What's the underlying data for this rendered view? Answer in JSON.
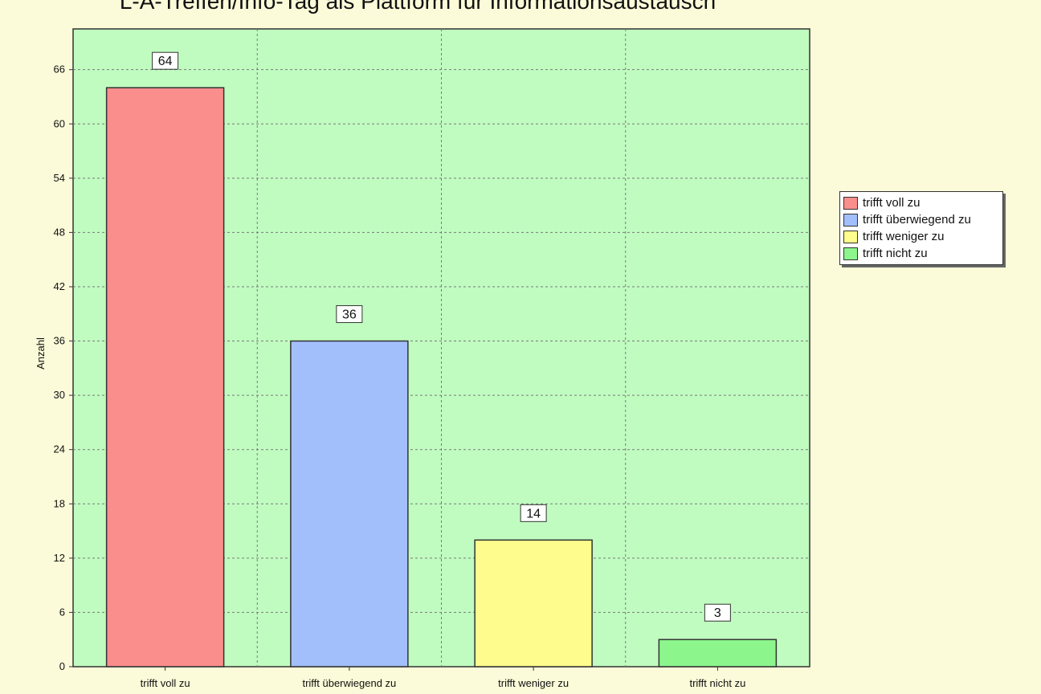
{
  "chart_data": {
    "type": "bar",
    "title": "L-A-Treffen/Info-Tag als Plattform für Informationsaustausch",
    "ylabel": "Anzahl",
    "xlabel": "",
    "categories": [
      "trifft voll zu",
      "trifft überwiegend zu",
      "trifft weniger zu",
      "trifft nicht zu"
    ],
    "values": [
      64,
      36,
      14,
      3
    ],
    "data_labels": [
      "64",
      "36",
      "14",
      "3"
    ],
    "colors": [
      "#f98e8c",
      "#a2bffc",
      "#fdfc8c",
      "#8cf68c"
    ],
    "ylim": [
      0,
      70.5
    ],
    "yticks": [
      0,
      6,
      12,
      18,
      24,
      30,
      36,
      42,
      48,
      54,
      60,
      66
    ],
    "ytick_labels": [
      "0",
      "6",
      "12",
      "18",
      "24",
      "30",
      "36",
      "42",
      "48",
      "54",
      "60",
      "66"
    ],
    "grid": true,
    "plot_background": "#c0fcc0",
    "legend": {
      "placement": "right",
      "entries": [
        "trifft voll zu",
        "trifft überwiegend zu",
        "trifft weniger zu",
        "trifft nicht zu"
      ]
    }
  }
}
